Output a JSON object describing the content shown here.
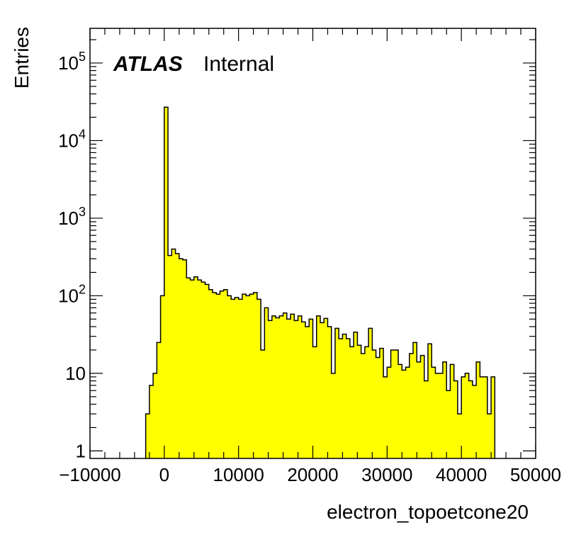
{
  "chart_data": {
    "type": "bar",
    "histogram": true,
    "xlabel": "electron_topoetcone20",
    "ylabel": "Entries",
    "annotation": {
      "experiment": "ATLAS",
      "status": "Internal"
    },
    "xlim": [
      -10000,
      50000
    ],
    "ylim": [
      0.8,
      280000
    ],
    "yscale": "log",
    "grid": false,
    "legend": "none",
    "fill_color": "#ffff00",
    "line_color": "#000000",
    "x_ticks": [
      {
        "value": -10000,
        "label": "−10000"
      },
      {
        "value": 0,
        "label": "0"
      },
      {
        "value": 10000,
        "label": "10000"
      },
      {
        "value": 20000,
        "label": "20000"
      },
      {
        "value": 30000,
        "label": "30000"
      },
      {
        "value": 40000,
        "label": "40000"
      },
      {
        "value": 50000,
        "label": "50000"
      }
    ],
    "y_ticks": [
      {
        "value": 1,
        "base": "1",
        "exp": ""
      },
      {
        "value": 10,
        "base": "10",
        "exp": ""
      },
      {
        "value": 100,
        "base": "10",
        "exp": "2"
      },
      {
        "value": 1000,
        "base": "10",
        "exp": "3"
      },
      {
        "value": 10000,
        "base": "10",
        "exp": "4"
      },
      {
        "value": 100000,
        "base": "10",
        "exp": "5"
      }
    ],
    "bin_width": 500,
    "bin_start": -2500,
    "values": [
      3,
      7,
      10,
      25,
      100,
      27000,
      330,
      400,
      350,
      300,
      290,
      170,
      160,
      175,
      160,
      150,
      140,
      120,
      110,
      105,
      115,
      120,
      100,
      90,
      95,
      90,
      105,
      100,
      105,
      110,
      90,
      20,
      70,
      48,
      55,
      52,
      55,
      60,
      50,
      58,
      48,
      55,
      46,
      40,
      50,
      22,
      55,
      45,
      51,
      40,
      10,
      38,
      28,
      32,
      28,
      22,
      34,
      23,
      18,
      22,
      38,
      20,
      16,
      21,
      9,
      12,
      20,
      20,
      13,
      11,
      12,
      18,
      25,
      14,
      17,
      8,
      24,
      12,
      10,
      10,
      14,
      6,
      13,
      8,
      3,
      9,
      10,
      8,
      7,
      14,
      9,
      9,
      3,
      9
    ]
  }
}
